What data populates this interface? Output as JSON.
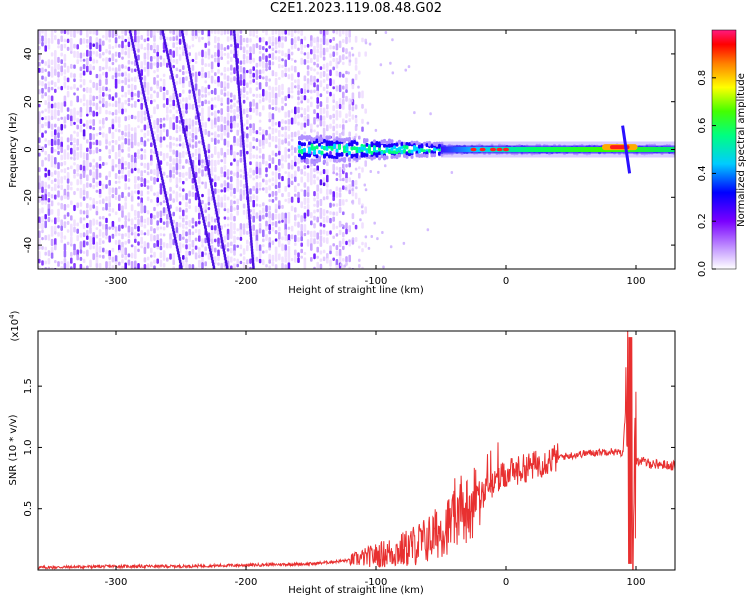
{
  "title": "C2E1.2023.119.08.48.G02",
  "chart_data": [
    {
      "type": "heatmap",
      "xlabel": "Height of straight line (km)",
      "ylabel": "Frequency (Hz)",
      "xlim": [
        -360,
        130
      ],
      "ylim": [
        -50,
        50
      ],
      "x_ticks": [
        -300,
        -200,
        -100,
        0,
        100
      ],
      "y_ticks": [
        -40,
        -20,
        0,
        20,
        40
      ],
      "colorbar": {
        "label": "Normalized spectral amplitude",
        "range": [
          0,
          1
        ],
        "ticks": [
          0.0,
          0.2,
          0.4,
          0.6,
          0.8
        ],
        "tick_labels": [
          "0.0",
          "0.2",
          "0.4",
          "0.6",
          "0.8"
        ]
      },
      "features": [
        {
          "region": "broadband noise",
          "x": [
            -360,
            -130
          ],
          "amplitude": 0.15
        },
        {
          "region": "spectral line near 0 Hz",
          "x": [
            -160,
            130
          ],
          "frequency": 0,
          "amplitude": 0.45
        },
        {
          "region": "peak",
          "x": [
            80,
            95
          ],
          "frequency": 1,
          "amplitude": 0.9
        }
      ]
    },
    {
      "type": "line",
      "xlabel": "Height of straight line (km)",
      "ylabel": "SNR (10 * v/v)",
      "y_scale_label": "(x10",
      "y_scale_exp": "4",
      "y_scale_close": ")",
      "xlim": [
        -360,
        130
      ],
      "ylim": [
        0,
        1.95
      ],
      "x_ticks": [
        -300,
        -200,
        -100,
        0,
        100
      ],
      "y_ticks": [
        0.5,
        1.0,
        1.5
      ],
      "y_tick_labels": [
        "0.5",
        "1.0",
        "1.5"
      ],
      "series": [
        {
          "color": "#e83030",
          "x": [
            -360,
            -300,
            -250,
            -200,
            -150,
            -120,
            -100,
            -80,
            -60,
            -40,
            -20,
            0,
            20,
            40,
            60,
            80,
            90,
            95,
            97,
            100,
            110,
            130
          ],
          "y": [
            0.02,
            0.03,
            0.03,
            0.04,
            0.05,
            0.08,
            0.12,
            0.16,
            0.25,
            0.4,
            0.6,
            0.78,
            0.85,
            0.92,
            0.95,
            0.97,
            0.95,
            1.9,
            0.1,
            0.9,
            0.87,
            0.85
          ]
        }
      ]
    }
  ]
}
